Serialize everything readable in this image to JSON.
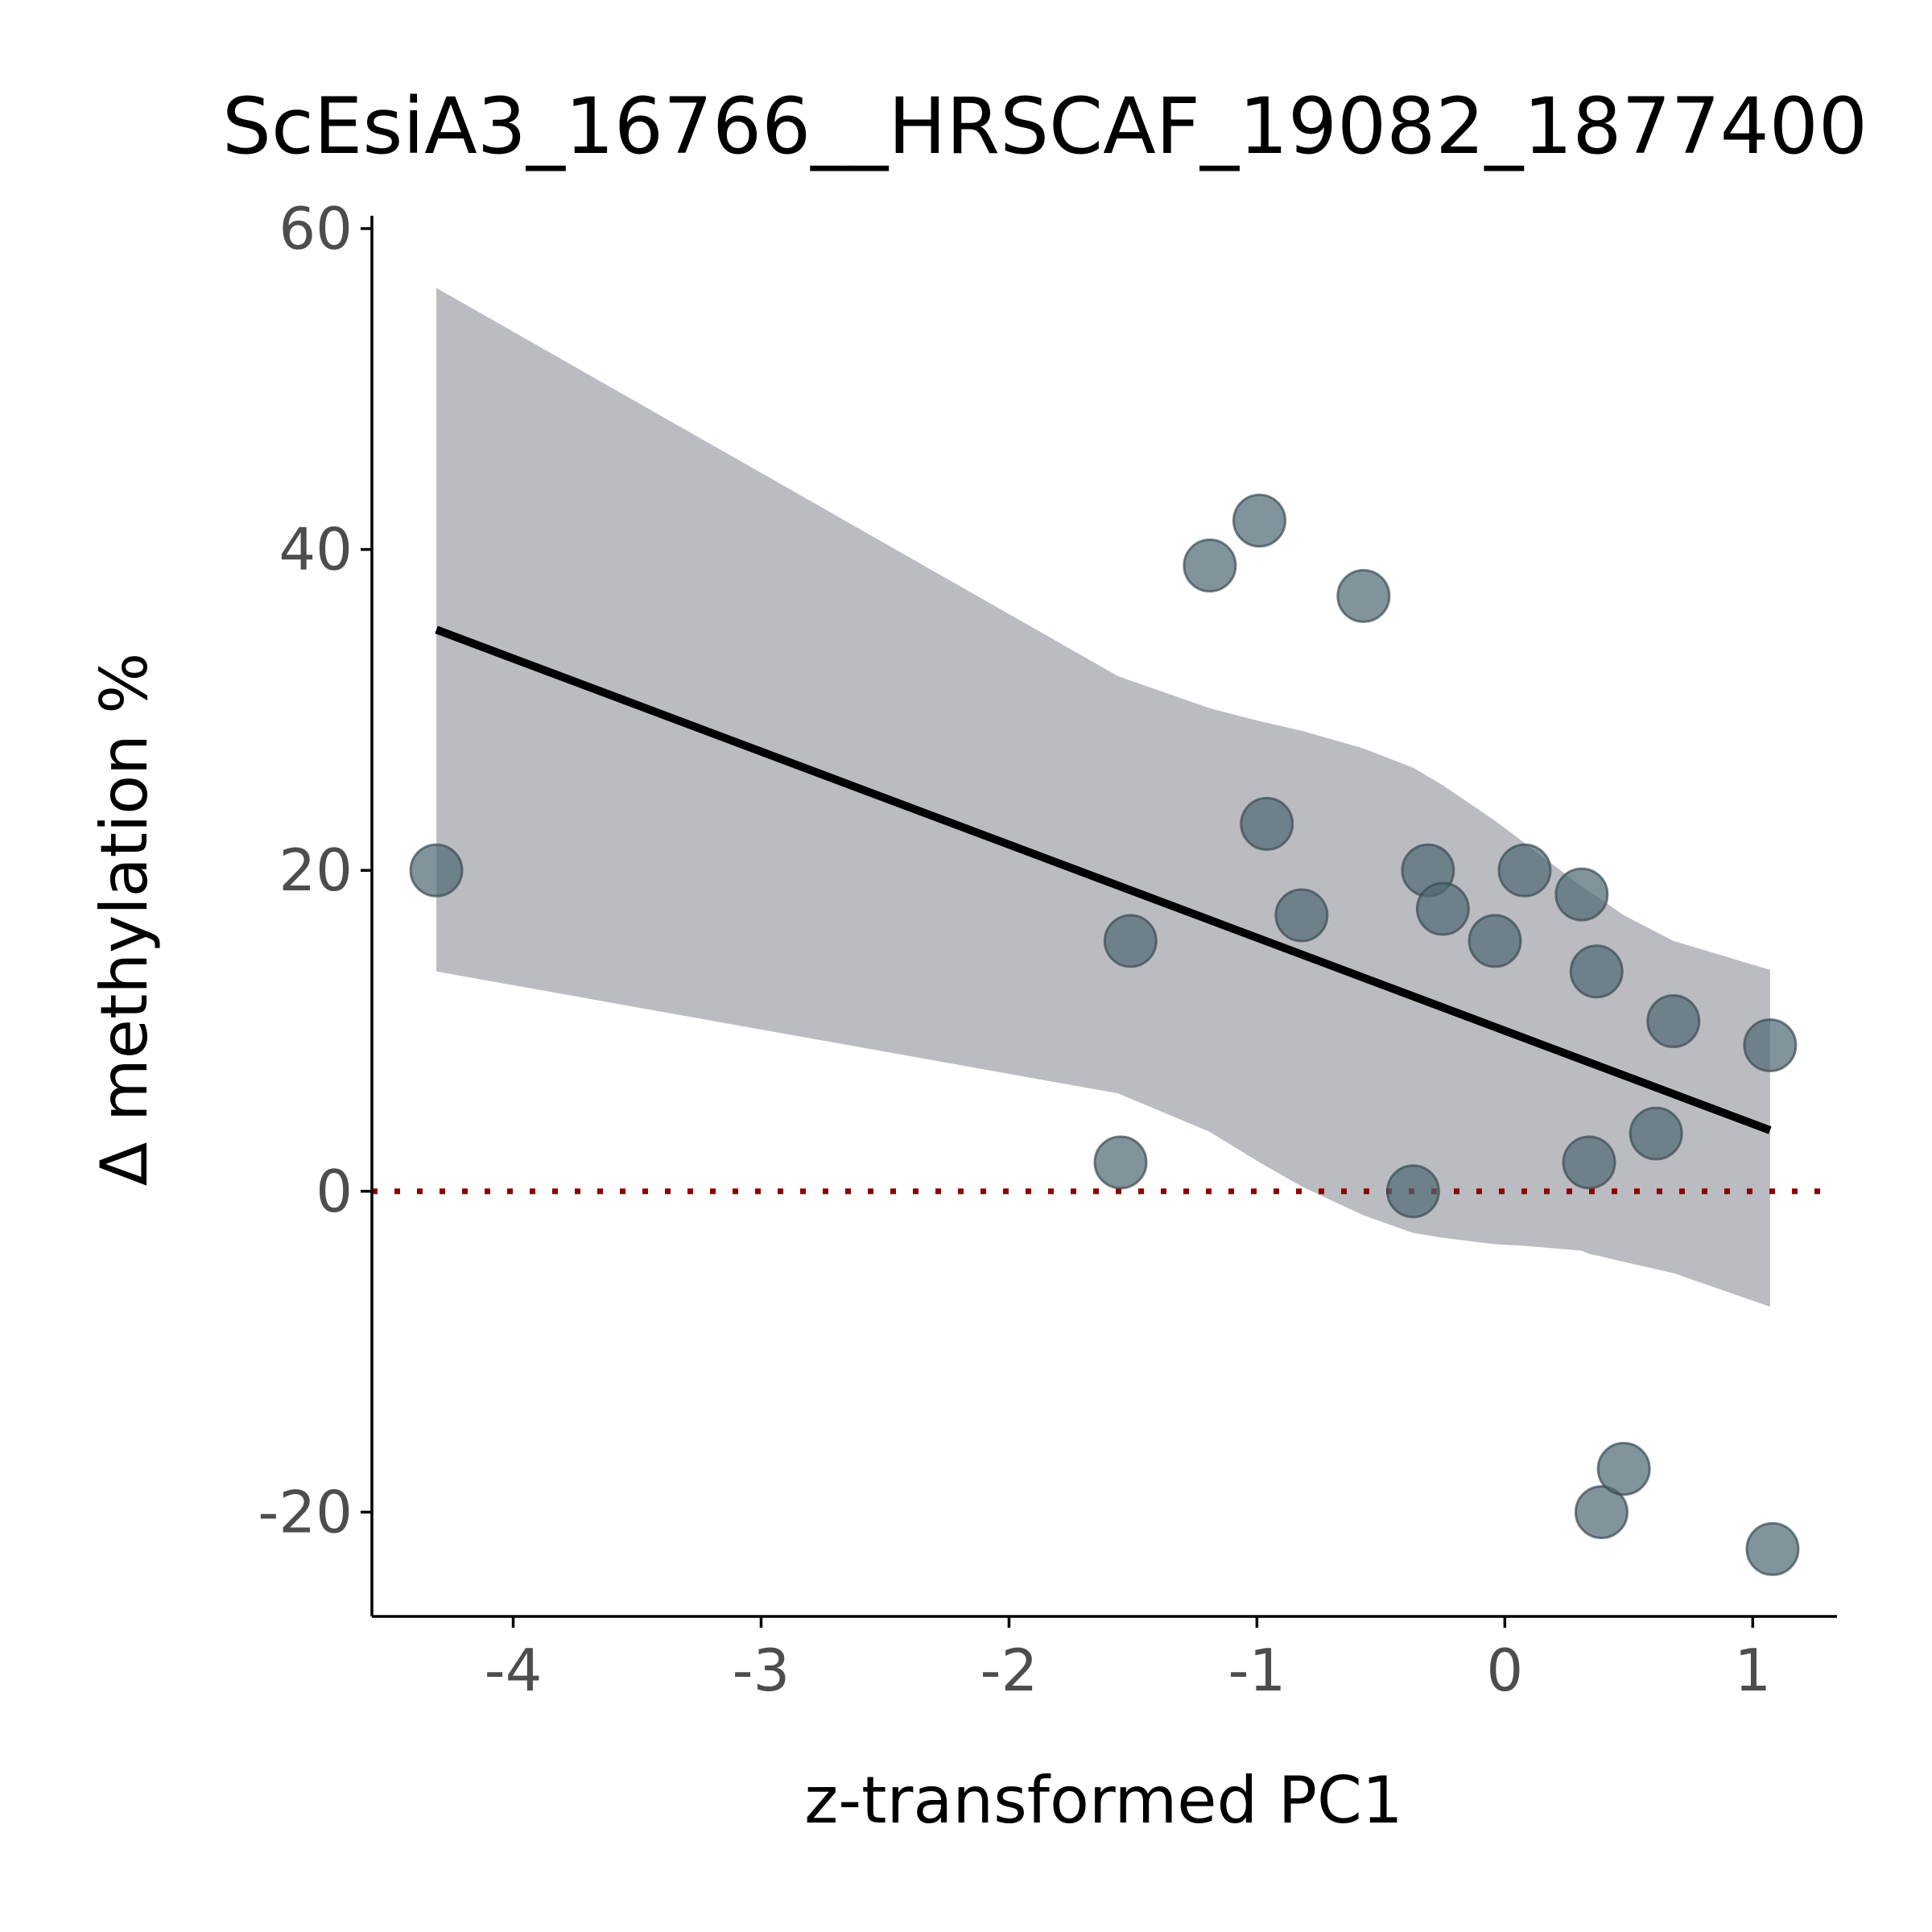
{
  "chart_data": {
    "type": "scatter",
    "title": "ScEsiA3_16766__HRSCAF_19082_1877400",
    "xlabel": "z-transformed PC1",
    "ylabel": "Δ methylation %",
    "xlim": [
      -4.57,
      1.34
    ],
    "ylim": [
      -26.5,
      60.8
    ],
    "x_ticks": [
      -4,
      -3,
      -2,
      -1,
      0,
      1
    ],
    "x_tick_labels": [
      "-4",
      "-3",
      "-2",
      "-1",
      "0",
      "1"
    ],
    "y_ticks": [
      -20,
      0,
      20,
      40,
      60
    ],
    "y_tick_labels": [
      "-20",
      "0",
      "20",
      "40",
      "60"
    ],
    "grid": false,
    "legend": "none",
    "colors": {
      "points": "#4d6670",
      "point_outline": "#3a4a52",
      "fit_line": "#000000",
      "confidence_band": "#bbbcc1",
      "reference_line": "#8b0000",
      "axis": "#000000"
    },
    "points": [
      {
        "x": -4.31,
        "y": 20.0
      },
      {
        "x": -1.55,
        "y": 1.8
      },
      {
        "x": -1.51,
        "y": 15.6
      },
      {
        "x": -1.19,
        "y": 39.0
      },
      {
        "x": -0.99,
        "y": 41.8
      },
      {
        "x": -0.96,
        "y": 22.9
      },
      {
        "x": -0.82,
        "y": 17.2
      },
      {
        "x": -0.57,
        "y": 37.1
      },
      {
        "x": -0.37,
        "y": 0.0
      },
      {
        "x": -0.31,
        "y": 20.0
      },
      {
        "x": -0.25,
        "y": 17.6
      },
      {
        "x": -0.04,
        "y": 15.6
      },
      {
        "x": 0.08,
        "y": 20.0
      },
      {
        "x": 0.31,
        "y": 18.5
      },
      {
        "x": 0.34,
        "y": 1.8
      },
      {
        "x": 0.37,
        "y": 13.7
      },
      {
        "x": 0.39,
        "y": -20.0
      },
      {
        "x": 0.48,
        "y": -17.3
      },
      {
        "x": 0.61,
        "y": 3.6
      },
      {
        "x": 0.68,
        "y": 10.6
      },
      {
        "x": 1.07,
        "y": 9.1
      },
      {
        "x": 1.08,
        "y": -22.3
      }
    ],
    "fit_line": {
      "x": [
        -4.31,
        1.07
      ],
      "y": [
        35.0,
        3.8
      ]
    },
    "confidence_band": {
      "x": [
        -4.31,
        -1.56,
        -1.19,
        -0.99,
        -0.82,
        -0.57,
        -0.37,
        -0.25,
        -0.04,
        0.08,
        0.31,
        0.34,
        0.37,
        0.48,
        0.68,
        1.07
      ],
      "upper": [
        56.3,
        32.1,
        30.1,
        29.3,
        28.7,
        27.6,
        26.4,
        25.3,
        23.1,
        21.7,
        19.0,
        18.7,
        18.4,
        17.2,
        15.6,
        13.8
      ],
      "lower": [
        13.7,
        6.1,
        3.7,
        1.8,
        0.3,
        -1.5,
        -2.6,
        -2.9,
        -3.3,
        -3.4,
        -3.7,
        -3.9,
        -4.0,
        -4.4,
        -5.1,
        -7.2
      ]
    },
    "reference_line": {
      "y": 0,
      "style": "dotted"
    }
  }
}
